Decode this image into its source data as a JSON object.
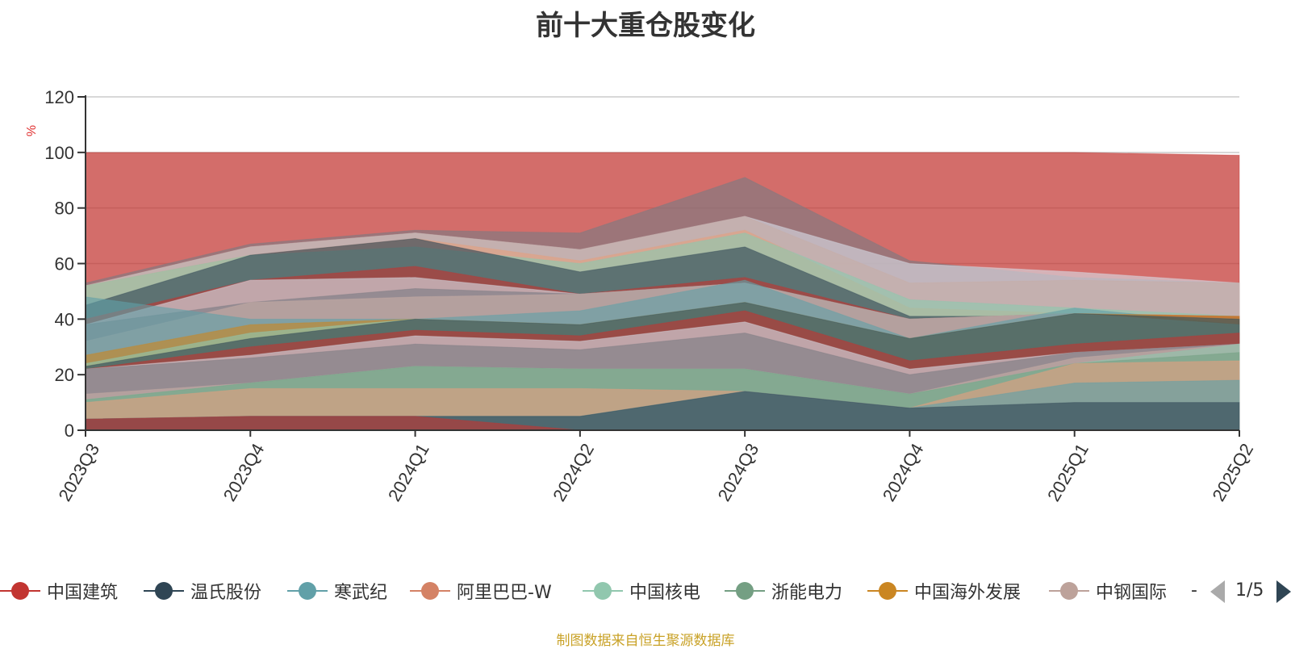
{
  "chart_data": {
    "type": "area",
    "title": "前十大重仓股变化",
    "ylabel": "%",
    "ylim": [
      0,
      120
    ],
    "yticks": [
      0,
      20,
      40,
      60,
      80,
      100,
      120
    ],
    "categories": [
      "2023Q3",
      "2023Q4",
      "2024Q1",
      "2024Q2",
      "2024Q3",
      "2024Q4",
      "2025Q1",
      "2025Q2"
    ],
    "grid": true,
    "stacked": false,
    "layers": [
      {
        "color": "#c23531",
        "upper": [
          100,
          100,
          100,
          100,
          100,
          100,
          100,
          99
        ]
      },
      {
        "color": "#7b7b82",
        "upper": [
          53,
          67,
          72,
          71,
          91,
          61,
          55,
          53
        ]
      },
      {
        "color": "#d8dde6",
        "upper": [
          52,
          66,
          71,
          65,
          77,
          60,
          57,
          53
        ]
      },
      {
        "color": "#c7aca6",
        "upper": [
          52,
          66,
          71,
          65,
          77,
          53,
          54,
          53
        ]
      },
      {
        "color": "#e3a080",
        "upper": [
          52,
          63,
          69,
          61,
          72,
          44,
          42,
          41
        ]
      },
      {
        "color": "#8dc9b0",
        "upper": [
          52,
          63,
          66,
          60,
          71,
          47,
          44,
          41
        ]
      },
      {
        "color": "#2f4554",
        "upper": [
          45,
          63,
          69,
          57,
          66,
          41,
          41,
          40
        ]
      },
      {
        "color": "#c23531",
        "upper": [
          40,
          54,
          59,
          49,
          55,
          40,
          42,
          41
        ]
      },
      {
        "color": "#d8dde6",
        "upper": [
          38,
          54,
          55,
          49,
          53,
          40,
          42,
          40
        ]
      },
      {
        "color": "#7b7b82",
        "upper": [
          38,
          46,
          51,
          49,
          53,
          40,
          42,
          40
        ]
      },
      {
        "color": "#c7aca6",
        "upper": [
          32,
          46,
          48,
          49,
          53,
          40,
          42,
          40
        ]
      },
      {
        "color": "#61a0a8",
        "upper": [
          48,
          40,
          40,
          43,
          54,
          33,
          44,
          38
        ]
      },
      {
        "color": "#ca8622",
        "upper": [
          27,
          38,
          40,
          38,
          46,
          33,
          42,
          41
        ]
      },
      {
        "color": "#91c7ae",
        "upper": [
          24,
          35,
          40,
          38,
          46,
          33,
          42,
          38
        ]
      },
      {
        "color": "#2f4554",
        "upper": [
          23,
          33,
          40,
          38,
          46,
          33,
          42,
          40
        ]
      },
      {
        "color": "#c23531",
        "upper": [
          22,
          30,
          36,
          34,
          43,
          25,
          31,
          35
        ]
      },
      {
        "color": "#d8dde6",
        "upper": [
          22,
          27,
          34,
          32,
          39,
          22,
          28,
          31
        ]
      },
      {
        "color": "#7b7b82",
        "upper": [
          22,
          26,
          31,
          29,
          35,
          20,
          28,
          31
        ]
      },
      {
        "color": "#c7aca6",
        "upper": [
          13,
          17,
          23,
          22,
          22,
          13,
          26,
          31
        ]
      },
      {
        "color": "#91c7ae",
        "upper": [
          11,
          17,
          23,
          22,
          22,
          13,
          24,
          31
        ]
      },
      {
        "color": "#749f83",
        "upper": [
          11,
          17,
          23,
          22,
          22,
          13,
          24,
          28
        ]
      },
      {
        "color": "#e3a080",
        "upper": [
          10,
          15,
          15,
          15,
          14,
          8,
          24,
          25
        ]
      },
      {
        "color": "#61a0a8",
        "upper": [
          4,
          5,
          5,
          5,
          14,
          8,
          17,
          18
        ]
      },
      {
        "color": "#2f4554",
        "upper": [
          4,
          5,
          5,
          5,
          14,
          8,
          10,
          10
        ]
      },
      {
        "color": "#c23531",
        "upper": [
          4,
          5,
          5,
          0,
          0,
          0,
          0,
          0
        ]
      }
    ],
    "legend": [
      {
        "label": "中国建筑",
        "color": "#c23531"
      },
      {
        "label": "温氏股份",
        "color": "#2f4554"
      },
      {
        "label": "寒武纪",
        "color": "#61a0a8"
      },
      {
        "label": "阿里巴巴-W",
        "color": "#d48265"
      },
      {
        "label": "中国核电",
        "color": "#91c7ae"
      },
      {
        "label": "浙能电力",
        "color": "#749f83"
      },
      {
        "label": "中国海外发展",
        "color": "#ca8622"
      },
      {
        "label": "中钢国际",
        "color": "#bda29a"
      }
    ],
    "legend_more": "-",
    "legend_page": "1/5",
    "source": "制图数据来自恒生聚源数据库"
  }
}
